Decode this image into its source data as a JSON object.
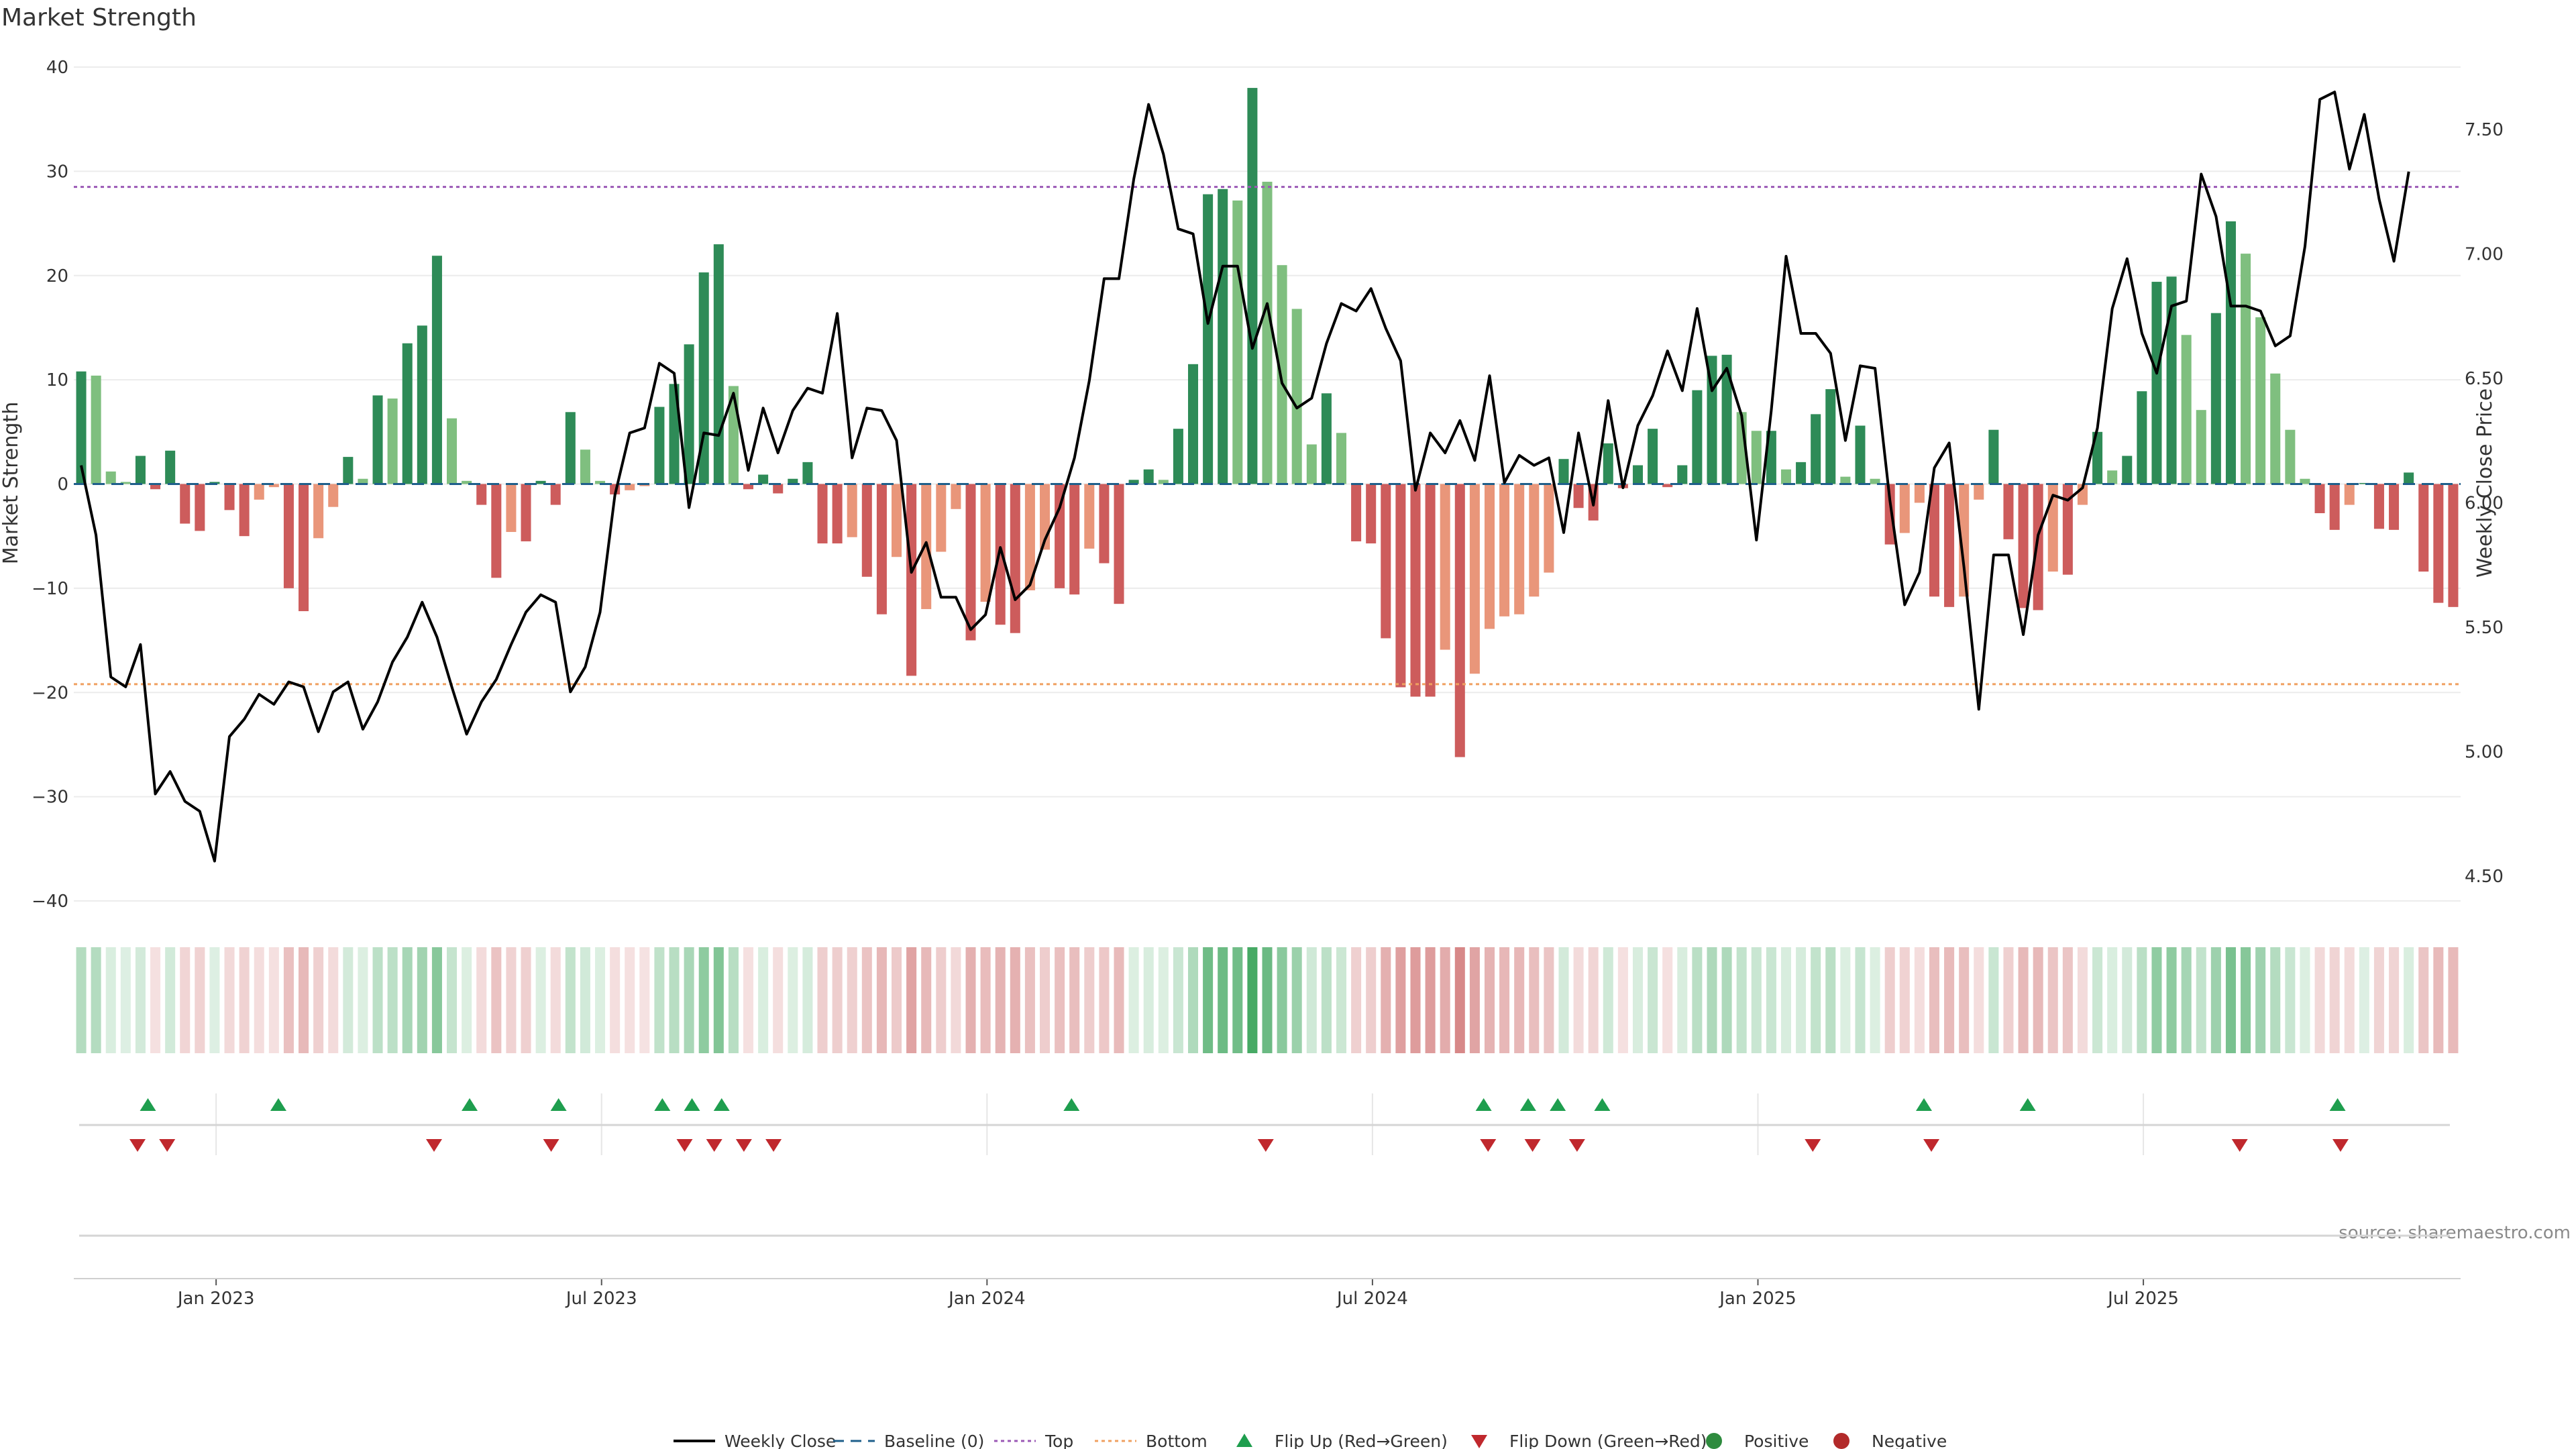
{
  "chart_data": {
    "type": "bar",
    "title": "Market Strength",
    "ylabel_left": "Market Strength",
    "ylabel_right": "Weekly Close Price",
    "source": "source: sharemaestro.com",
    "y_left_range": [
      -40,
      40
    ],
    "y_left_ticks": [
      "40",
      "30",
      "20",
      "10",
      "0",
      "−10",
      "−20",
      "−30",
      "−40"
    ],
    "y_right_range": [
      4.4,
      7.75
    ],
    "y_right_ticks": [
      "7.50",
      "7.00",
      "6.50",
      "6.00",
      "5.50",
      "5.00",
      "4.50"
    ],
    "x_ticks": [
      "Jan 2023",
      "Jul 2023",
      "Jan 2024",
      "Jul 2024",
      "Jan 2025",
      "Jul 2025"
    ],
    "x_tick_weeks": [
      9.6,
      35.6,
      61.6,
      87.6,
      113.6,
      139.6
    ],
    "top_line": 28.5,
    "bottom_line": -19.2,
    "colors": {
      "strong_green": "#2e8b57",
      "light_green": "#7fbf7f",
      "strong_red": "#cd5c5c",
      "light_red": "#e9967a",
      "line": "#000000",
      "baseline": "#1f5f8b",
      "top": "#9b59b6",
      "bottom": "#f0a060",
      "flip_up": "#1e9e4e",
      "flip_down": "#c0282d"
    },
    "strength": [
      10.8,
      10.4,
      1.2,
      0.2,
      2.7,
      -0.5,
      3.2,
      -3.8,
      -4.5,
      0.2,
      -2.5,
      -5,
      -1.5,
      -0.3,
      -10,
      -12.2,
      -5.2,
      -2.2,
      2.6,
      0.5,
      8.5,
      8.2,
      13.5,
      15.2,
      21.9,
      6.3,
      0.3,
      -2,
      -9,
      -4.6,
      -5.5,
      0.3,
      -2,
      6.9,
      3.3,
      0.3,
      -1,
      -0.6,
      -0.2,
      7.4,
      9.6,
      13.4,
      20.3,
      23,
      9.4,
      -0.5,
      0.9,
      -0.9,
      0.5,
      2.1,
      -5.7,
      -5.7,
      -5.1,
      -8.9,
      -12.5,
      -7,
      -18.4,
      -12,
      -6.5,
      -2.4,
      -15,
      -11.3,
      -13.5,
      -14.3,
      -10.2,
      -6.3,
      -10,
      -10.6,
      -6.2,
      -7.6,
      -11.5,
      0.4,
      1.4,
      0.4,
      5.3,
      11.5,
      27.8,
      28.3,
      27.2,
      38,
      29,
      21,
      16.8,
      3.8,
      8.7,
      4.9,
      -5.5,
      -5.7,
      -14.8,
      -19.5,
      -20.4,
      -20.4,
      -15.9,
      -26.2,
      -18.2,
      -13.9,
      -12.7,
      -12.5,
      -10.8,
      -8.5,
      2.4,
      -2.3,
      -3.5,
      3.9,
      -0.4,
      1.8,
      5.3,
      -0.3,
      1.8,
      9,
      12.3,
      12.4,
      6.9,
      5.1,
      5.1,
      1.4,
      2.1,
      6.7,
      9.1,
      0.7,
      5.6,
      0.5,
      -5.8,
      -4.7,
      -1.8,
      -10.8,
      -11.8,
      -10.8,
      -1.5,
      5.2,
      -5.3,
      -11.9,
      -12.1,
      -8.4,
      -8.7,
      -2,
      5,
      1.3,
      2.7,
      8.9,
      19.4,
      19.9,
      14.3,
      7.1,
      16.4,
      25.2,
      22.1,
      16,
      10.6,
      5.2,
      0.5,
      -2.8,
      -4.4,
      -2,
      0.1,
      -4.3,
      -4.4,
      1.1,
      -8.4,
      -11.4,
      -11.8
    ],
    "price": [
      6.15,
      5.87,
      5.3,
      5.26,
      5.43,
      4.83,
      4.92,
      4.8,
      4.76,
      4.56,
      5.06,
      5.13,
      5.23,
      5.19,
      5.28,
      5.26,
      5.08,
      5.24,
      5.28,
      5.09,
      5.2,
      5.36,
      5.46,
      5.6,
      5.46,
      5.26,
      5.07,
      5.2,
      5.29,
      5.43,
      5.56,
      5.63,
      5.6,
      5.24,
      5.34,
      5.56,
      6.03,
      6.28,
      6.3,
      6.56,
      6.52,
      5.98,
      6.28,
      6.27,
      6.44,
      6.13,
      6.38,
      6.2,
      6.37,
      6.46,
      6.44,
      6.76,
      6.18,
      6.38,
      6.37,
      6.25,
      5.72,
      5.84,
      5.62,
      5.62,
      5.49,
      5.55,
      5.82,
      5.61,
      5.67,
      5.85,
      5.98,
      6.18,
      6.49,
      6.9,
      6.9,
      7.3,
      7.6,
      7.4,
      7.1,
      7.08,
      6.72,
      6.95,
      6.95,
      6.62,
      6.8,
      6.48,
      6.38,
      6.42,
      6.64,
      6.8,
      6.77,
      6.86,
      6.7,
      6.57,
      6.05,
      6.28,
      6.2,
      6.33,
      6.17,
      6.51,
      6.08,
      6.19,
      6.15,
      6.18,
      5.88,
      6.28,
      5.99,
      6.41,
      6.06,
      6.31,
      6.43,
      6.61,
      6.45,
      6.78,
      6.45,
      6.54,
      6.35,
      5.85,
      6.37,
      6.99,
      6.68,
      6.68,
      6.6,
      6.25,
      6.55,
      6.54,
      6.01,
      5.59,
      5.72,
      6.14,
      6.24,
      5.74,
      5.17,
      5.79,
      5.79,
      5.47,
      5.87,
      6.03,
      6.01,
      6.06,
      6.3,
      6.78,
      6.98,
      6.68,
      6.52,
      6.79,
      6.81,
      7.32,
      7.15,
      6.79,
      6.79,
      6.77,
      6.63,
      6.67,
      7.03,
      7.62,
      7.65,
      7.34,
      7.56,
      7.22,
      6.97,
      7.33
    ],
    "flip_up_weeks": [
      5,
      13.8,
      26.7,
      32.7,
      39.7,
      41.7,
      43.7,
      67.3,
      95.1,
      98.1,
      100.1,
      103.1,
      124.8,
      131.8,
      152.7
    ],
    "flip_down_weeks": [
      4.3,
      6.3,
      24.3,
      32.2,
      41.2,
      43.2,
      45.2,
      47.2,
      80.4,
      95.4,
      98.4,
      101.4,
      117.3,
      125.3,
      146.1,
      152.9
    ],
    "legend": [
      {
        "label": "Weekly Close",
        "kind": "line"
      },
      {
        "label": "Baseline (0)",
        "kind": "baseline"
      },
      {
        "label": "Top",
        "kind": "top"
      },
      {
        "label": "Bottom",
        "kind": "bottom"
      },
      {
        "label": "Flip Up (Red→Green)",
        "kind": "up"
      },
      {
        "label": "Flip Down (Green→Red)",
        "kind": "down"
      },
      {
        "label": "Positive",
        "kind": "pos"
      },
      {
        "label": "Negative",
        "kind": "neg"
      }
    ]
  }
}
